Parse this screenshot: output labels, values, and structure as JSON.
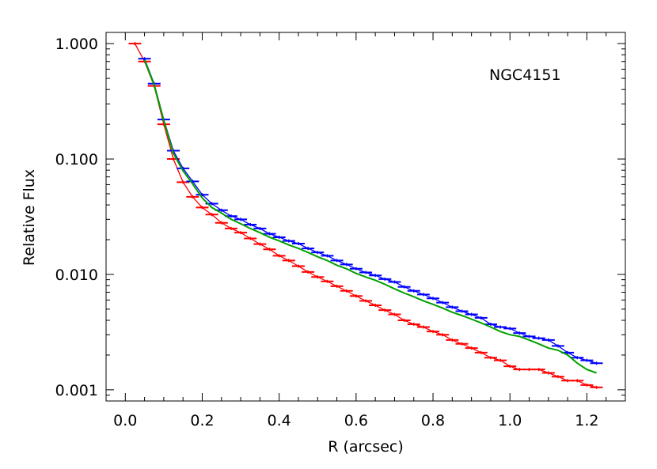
{
  "chart_data": {
    "type": "line",
    "title": "",
    "annotation": "NGC4151",
    "xlabel": "R (arcsec)",
    "ylabel": "Relative Flux",
    "xlim": [
      -0.05,
      1.3
    ],
    "ylim": [
      0.0008,
      1.25
    ],
    "yscale": "log",
    "grid": false,
    "x_ticks": [
      0.0,
      0.2,
      0.4,
      0.6,
      0.8,
      1.0,
      1.2
    ],
    "x_tick_labels": [
      "0.0",
      "0.2",
      "0.4",
      "0.6",
      "0.8",
      "1.0",
      "1.2"
    ],
    "y_ticks": [
      0.001,
      0.01,
      0.1,
      1.0
    ],
    "y_tick_labels": [
      "0.001",
      "0.010",
      "0.100",
      "1.000"
    ],
    "series": [
      {
        "color": "#0000ff",
        "style": "error-bar steps",
        "x": [
          0.05,
          0.075,
          0.1,
          0.125,
          0.15,
          0.175,
          0.2,
          0.225,
          0.25,
          0.275,
          0.3,
          0.325,
          0.35,
          0.375,
          0.4,
          0.425,
          0.45,
          0.475,
          0.5,
          0.525,
          0.55,
          0.575,
          0.6,
          0.625,
          0.65,
          0.675,
          0.7,
          0.725,
          0.75,
          0.775,
          0.8,
          0.825,
          0.85,
          0.875,
          0.9,
          0.925,
          0.95,
          0.975,
          1.0,
          1.025,
          1.05,
          1.075,
          1.1,
          1.125,
          1.15,
          1.175,
          1.2,
          1.225
        ],
        "y": [
          0.74,
          0.45,
          0.22,
          0.118,
          0.083,
          0.064,
          0.049,
          0.041,
          0.036,
          0.032,
          0.03,
          0.027,
          0.025,
          0.0225,
          0.021,
          0.0195,
          0.0185,
          0.0168,
          0.0155,
          0.0145,
          0.0132,
          0.0122,
          0.0112,
          0.0104,
          0.0098,
          0.0091,
          0.0086,
          0.0078,
          0.0072,
          0.0067,
          0.0062,
          0.0057,
          0.0052,
          0.0048,
          0.0045,
          0.0042,
          0.0037,
          0.0035,
          0.0034,
          0.0031,
          0.0029,
          0.0028,
          0.0027,
          0.0024,
          0.0021,
          0.0019,
          0.0018,
          0.0017
        ]
      },
      {
        "color": "#00a000",
        "style": "line",
        "x": [
          0.05,
          0.075,
          0.1,
          0.125,
          0.15,
          0.175,
          0.2,
          0.225,
          0.25,
          0.275,
          0.3,
          0.325,
          0.35,
          0.375,
          0.4,
          0.425,
          0.45,
          0.475,
          0.5,
          0.525,
          0.55,
          0.575,
          0.6,
          0.625,
          0.65,
          0.675,
          0.7,
          0.725,
          0.75,
          0.775,
          0.8,
          0.825,
          0.85,
          0.875,
          0.9,
          0.925,
          0.95,
          0.975,
          1.0,
          1.025,
          1.05,
          1.075,
          1.1,
          1.125,
          1.15,
          1.175,
          1.2,
          1.225
        ],
        "y": [
          0.72,
          0.44,
          0.215,
          0.112,
          0.079,
          0.061,
          0.046,
          0.038,
          0.034,
          0.03,
          0.0275,
          0.025,
          0.023,
          0.021,
          0.0195,
          0.018,
          0.0168,
          0.0155,
          0.0142,
          0.0132,
          0.012,
          0.0112,
          0.0102,
          0.0095,
          0.0089,
          0.0082,
          0.0075,
          0.0069,
          0.0064,
          0.0059,
          0.0055,
          0.0051,
          0.0047,
          0.0044,
          0.0041,
          0.0038,
          0.0035,
          0.0032,
          0.003,
          0.0029,
          0.0027,
          0.0025,
          0.0023,
          0.0022,
          0.002,
          0.0017,
          0.0015,
          0.0014
        ]
      },
      {
        "color": "#ff0000",
        "style": "error-bar steps",
        "x": [
          0.025,
          0.05,
          0.075,
          0.1,
          0.125,
          0.15,
          0.175,
          0.2,
          0.225,
          0.25,
          0.275,
          0.3,
          0.325,
          0.35,
          0.375,
          0.4,
          0.425,
          0.45,
          0.475,
          0.5,
          0.525,
          0.55,
          0.575,
          0.6,
          0.625,
          0.65,
          0.675,
          0.7,
          0.725,
          0.75,
          0.775,
          0.8,
          0.825,
          0.85,
          0.875,
          0.9,
          0.925,
          0.95,
          0.975,
          1.0,
          1.025,
          1.05,
          1.075,
          1.1,
          1.125,
          1.15,
          1.175,
          1.2,
          1.225
        ],
        "y": [
          1.0,
          0.7,
          0.43,
          0.2,
          0.1,
          0.063,
          0.047,
          0.038,
          0.033,
          0.028,
          0.025,
          0.023,
          0.0205,
          0.0183,
          0.0165,
          0.0145,
          0.0132,
          0.0118,
          0.0105,
          0.0095,
          0.0087,
          0.0079,
          0.0072,
          0.0065,
          0.0059,
          0.0054,
          0.0049,
          0.0045,
          0.004,
          0.0037,
          0.0035,
          0.0032,
          0.003,
          0.0027,
          0.0025,
          0.0023,
          0.0021,
          0.0019,
          0.0018,
          0.0016,
          0.0015,
          0.0015,
          0.0015,
          0.0014,
          0.0013,
          0.0012,
          0.0012,
          0.0011,
          0.00105
        ]
      }
    ]
  }
}
